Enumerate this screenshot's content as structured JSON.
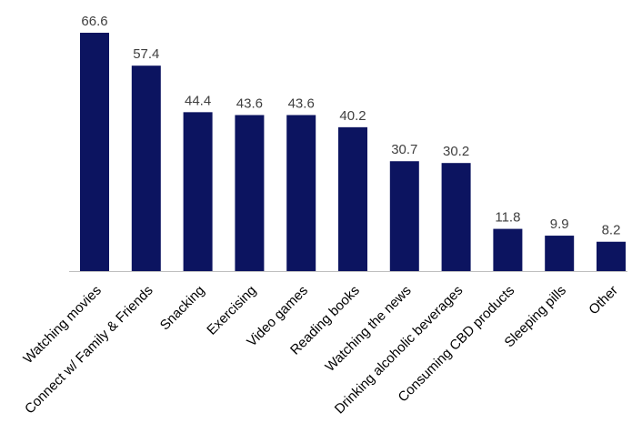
{
  "chart_data": {
    "type": "bar",
    "title": "",
    "xlabel": "",
    "ylabel": "",
    "ylim": [
      0,
      66.6
    ],
    "grid": false,
    "legend": "none",
    "bar_color": "#0c1460",
    "categories": [
      "Watching movies",
      "Connect w/ Family & Friends",
      "Snacking",
      "Exercising",
      "Video games",
      "Reading books",
      "Watching the news",
      "Drinking alcoholic beverages",
      "Consuming CBD products",
      "Sleeping pills",
      "Other"
    ],
    "values": [
      66.6,
      57.4,
      44.4,
      43.6,
      43.6,
      40.2,
      30.7,
      30.2,
      11.8,
      9.9,
      8.2
    ],
    "value_labels": [
      "66.6",
      "57.4",
      "44.4",
      "43.6",
      "43.6",
      "40.2",
      "30.7",
      "30.2",
      "11.8",
      "9.9",
      "8.2"
    ]
  }
}
